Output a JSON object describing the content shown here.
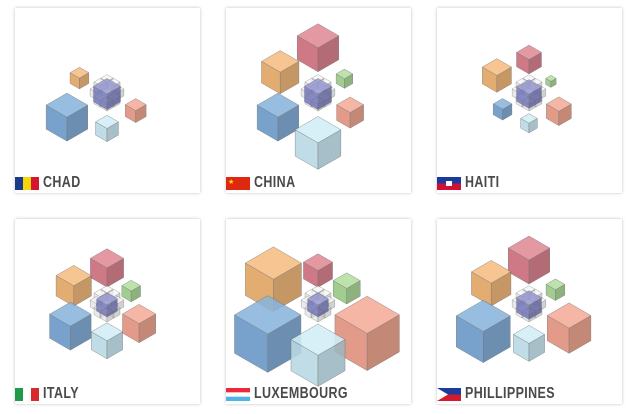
{
  "colors": {
    "blue": "#6fa3d6",
    "orange": "#f3b066",
    "red": "#d9707f",
    "green": "#a3d88c",
    "salmon": "#f29a82",
    "light": "#c8ebf7",
    "purple": "#7f82c9",
    "white": "#f4f4f4"
  },
  "countries": [
    {
      "name": "CHAD",
      "flag": "chad",
      "cubes": {
        "blue": 40,
        "orange": 18,
        "red": 0,
        "green": 0,
        "salmon": 20,
        "light": 22,
        "purple": 26
      }
    },
    {
      "name": "CHINA",
      "flag": "china",
      "cubes": {
        "blue": 40,
        "orange": 36,
        "red": 40,
        "green": 16,
        "salmon": 26,
        "light": 44,
        "purple": 26
      }
    },
    {
      "name": "HAITI",
      "flag": "haiti",
      "cubes": {
        "blue": 18,
        "orange": 28,
        "red": 24,
        "green": 10,
        "salmon": 24,
        "light": 16,
        "purple": 24
      }
    },
    {
      "name": "ITALY",
      "flag": "italy",
      "cubes": {
        "blue": 40,
        "orange": 34,
        "red": 32,
        "green": 18,
        "salmon": 32,
        "light": 30,
        "purple": 20
      }
    },
    {
      "name": "LUXEMBOURG",
      "flag": "luxembourg",
      "cubes": {
        "blue": 64,
        "orange": 54,
        "red": 28,
        "green": 26,
        "salmon": 62,
        "light": 52,
        "purple": 20
      }
    },
    {
      "name": "PHILLIPPINES",
      "flag": "philippines",
      "cubes": {
        "blue": 52,
        "orange": 38,
        "red": 40,
        "green": 18,
        "salmon": 42,
        "light": 30,
        "purple": 24
      }
    }
  ]
}
